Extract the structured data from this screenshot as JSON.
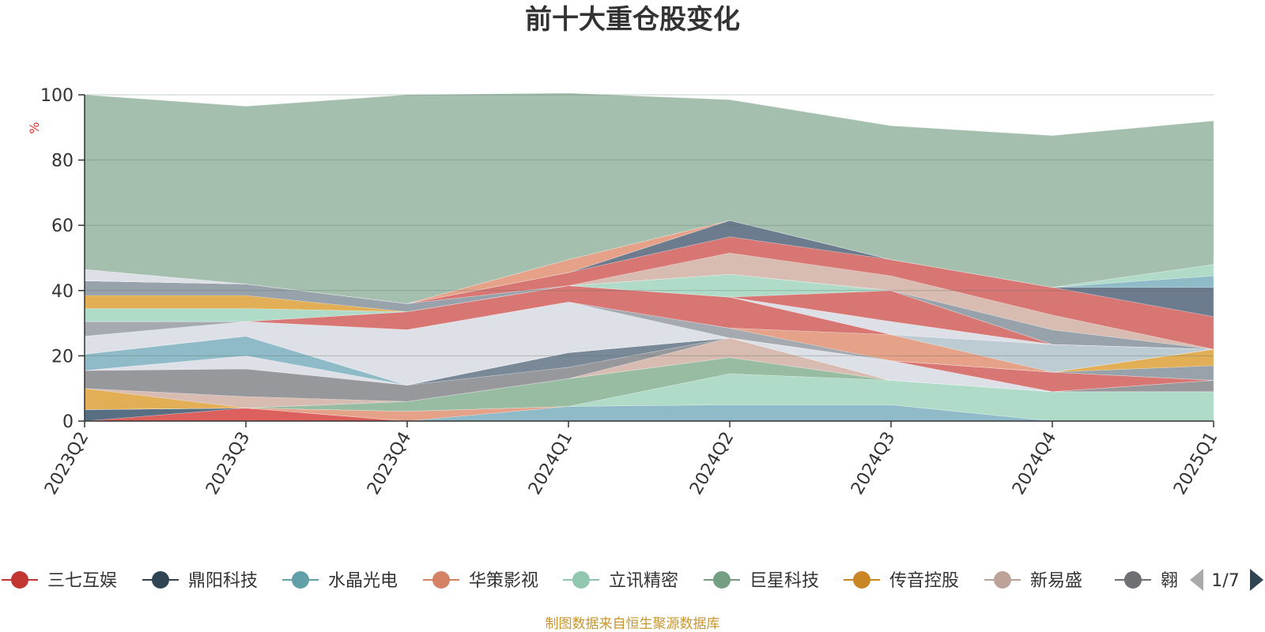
{
  "chart_data": {
    "type": "area",
    "stacked": true,
    "title": "前十大重仓股变化",
    "ylabel": "%",
    "ylim": [
      0,
      100
    ],
    "yticks": [
      0,
      20,
      40,
      60,
      80,
      100
    ],
    "grid": true,
    "legend_position": "bottom",
    "categories": [
      "2023Q2",
      "2023Q3",
      "2023Q4",
      "2024Q1",
      "2024Q2",
      "2024Q3",
      "2024Q4",
      "2025Q1"
    ],
    "series": [
      {
        "name": "三七互娱",
        "color": "#d9534f",
        "values": [
          0,
          4,
          0,
          0,
          0,
          0,
          0,
          0
        ]
      },
      {
        "name": "鼎阳科技",
        "color": "#4a6378",
        "values": [
          3.5,
          0,
          0,
          0,
          0,
          0,
          0,
          0
        ]
      },
      {
        "name": "水晶光电",
        "color": "#86b4c2",
        "values": [
          0,
          0,
          0,
          4.5,
          5,
          5,
          0,
          0
        ]
      },
      {
        "name": "华策影视",
        "color": "#e39a7e",
        "values": [
          0,
          0,
          3,
          0,
          0,
          0,
          0,
          0
        ]
      },
      {
        "name": "立讯精密",
        "color": "#a9d8c4",
        "values": [
          0,
          0,
          0,
          0,
          9.5,
          7.5,
          9,
          9
        ]
      },
      {
        "name": "巨星科技",
        "color": "#8fb69a",
        "values": [
          0,
          0,
          3,
          8.5,
          5,
          0,
          0,
          0
        ]
      },
      {
        "name": "传音控股",
        "color": "#e0a848",
        "values": [
          6.5,
          0,
          0,
          0,
          0,
          0,
          0,
          0
        ]
      },
      {
        "name": "新易盛",
        "color": "#d5b5aa",
        "values": [
          0,
          3.5,
          0,
          0,
          6,
          0,
          0,
          0
        ]
      },
      {
        "name": "翱捷科技",
        "color": "#8e8f94",
        "values": [
          5.5,
          8.5,
          5,
          3.5,
          0,
          0,
          0,
          3.5
        ]
      },
      {
        "name": "",
        "color": "#6e7f8f",
        "values": [
          0,
          0,
          0,
          4.5,
          0,
          0,
          0,
          0
        ]
      },
      {
        "name": "",
        "color": "#dadde4",
        "values": [
          0,
          4,
          0,
          0,
          0,
          6,
          0,
          0
        ]
      },
      {
        "name": "",
        "color": "#d46a67",
        "values": [
          0,
          0,
          0,
          0,
          0,
          0,
          6,
          0
        ]
      },
      {
        "name": "",
        "color": "#86b4c2",
        "values": [
          5,
          6,
          0,
          0,
          0,
          0,
          0,
          0
        ]
      },
      {
        "name": "",
        "color": "#8e9aa3",
        "values": [
          0,
          0,
          0,
          0,
          0,
          0,
          0,
          4.5
        ]
      },
      {
        "name": "",
        "color": "#e0a848",
        "values": [
          0,
          0,
          0,
          0,
          0,
          0,
          0,
          5
        ]
      },
      {
        "name": "",
        "color": "#dadde4",
        "values": [
          5.5,
          4.5,
          17,
          15.5,
          0,
          0,
          0,
          0
        ]
      },
      {
        "name": "",
        "color": "#9ca3a8",
        "values": [
          4.5,
          0,
          0,
          0,
          3,
          0,
          0,
          0
        ]
      },
      {
        "name": "",
        "color": "#e39a7e",
        "values": [
          0,
          0,
          0,
          0,
          0,
          8,
          0,
          0
        ]
      },
      {
        "name": "",
        "color": "#b7c7cf",
        "values": [
          0,
          0,
          0,
          0,
          0,
          0,
          8.5,
          0
        ]
      },
      {
        "name": "",
        "color": "#d46a67",
        "values": [
          0,
          0,
          5.5,
          5,
          9.5,
          0,
          0,
          0
        ]
      },
      {
        "name": "",
        "color": "#dadde4",
        "values": [
          0,
          0,
          0,
          0,
          0,
          4,
          0,
          0
        ]
      },
      {
        "name": "",
        "color": "#d46a67",
        "values": [
          0,
          0,
          0,
          0,
          0,
          9.5,
          0,
          0
        ]
      },
      {
        "name": "",
        "color": "#a9d8c4",
        "values": [
          4,
          4,
          0,
          0,
          7,
          0,
          0,
          0
        ]
      },
      {
        "name": "",
        "color": "#e0a848",
        "values": [
          4,
          4,
          0,
          0,
          0,
          0,
          0,
          0
        ]
      },
      {
        "name": "",
        "color": "#8e9aa3",
        "values": [
          4.5,
          3.5,
          2.5,
          0,
          0,
          0,
          4.5,
          0
        ]
      },
      {
        "name": "",
        "color": "#d5b5aa",
        "values": [
          0,
          0,
          0,
          0,
          6.5,
          4.5,
          4.5,
          0
        ]
      },
      {
        "name": "",
        "color": "#d46a67",
        "values": [
          0,
          0,
          0,
          4,
          5,
          5,
          8.5,
          10
        ]
      },
      {
        "name": "",
        "color": "#5f7083",
        "values": [
          0,
          0,
          0,
          0,
          5,
          0,
          0,
          9
        ]
      },
      {
        "name": "",
        "color": "#86b4c2",
        "values": [
          0,
          0,
          0,
          0,
          0,
          0,
          0,
          3.5
        ]
      },
      {
        "name": "",
        "color": "#a9d8c4",
        "values": [
          0,
          0,
          0,
          0,
          0,
          0,
          0,
          3.5
        ]
      },
      {
        "name": "",
        "color": "#e39a7e",
        "values": [
          0,
          0,
          0,
          4,
          0,
          0,
          0,
          0
        ]
      },
      {
        "name": "",
        "color": "#dadde4",
        "values": [
          3.5,
          0,
          0,
          0,
          0,
          0,
          0,
          0
        ]
      },
      {
        "name": "",
        "color": "#9dbaa8",
        "values": [
          53.5,
          54.5,
          64,
          51,
          37,
          41,
          46.5,
          44
        ]
      }
    ]
  },
  "legend": {
    "items": [
      {
        "name": "三七互娱",
        "color": "#c23531"
      },
      {
        "name": "鼎阳科技",
        "color": "#2f4554"
      },
      {
        "name": "水晶光电",
        "color": "#61a0a8"
      },
      {
        "name": "华策影视",
        "color": "#d48265"
      },
      {
        "name": "立讯精密",
        "color": "#91c7ae"
      },
      {
        "name": "巨星科技",
        "color": "#749f83"
      },
      {
        "name": "传音控股",
        "color": "#ca8622"
      },
      {
        "name": "新易盛",
        "color": "#bda29a"
      },
      {
        "name": "翱",
        "color": "#6e7074"
      }
    ],
    "page_indicator": "1/7"
  },
  "source_note": "制图数据来自恒生聚源数据库"
}
